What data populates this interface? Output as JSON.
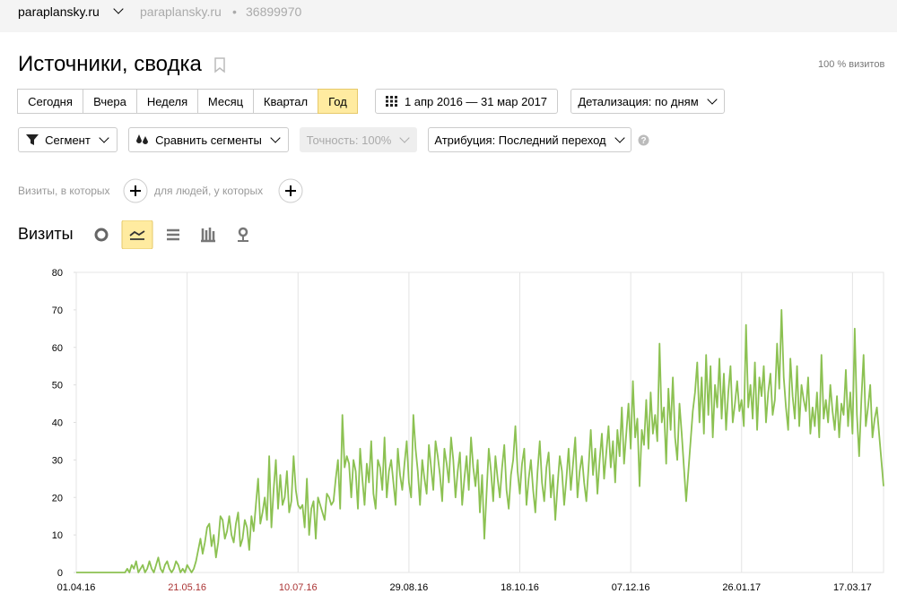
{
  "header": {
    "site": "paraplansky.ru",
    "site_secondary": "paraplansky.ru",
    "counter_id": "36899970"
  },
  "page": {
    "title": "Источники, сводка",
    "visits_share": "100 % визитов"
  },
  "period_buttons": [
    "Сегодня",
    "Вчера",
    "Неделя",
    "Месяц",
    "Квартал",
    "Год"
  ],
  "selected_period": 5,
  "date_range": "1 апр 2016 — 31 мар 2017",
  "detail": "Детализация: по дням",
  "filters": [
    "Сегмент",
    "Сравнить сегменты",
    "Точность: 100%",
    "Атрибуция: Последний переход"
  ],
  "segment_builder": {
    "visits_label": "Визиты, в которых",
    "people_label": "для людей, у которых"
  },
  "chart_data": {
    "type": "line",
    "title": "Визиты",
    "color": "#8cc152",
    "grid": true,
    "xlim": [
      0,
      364
    ],
    "ylim": [
      0,
      80
    ],
    "yticks": [
      0,
      10,
      20,
      30,
      40,
      50,
      60,
      70,
      80
    ],
    "xticks": [
      {
        "value": 0,
        "label": "01.04.16"
      },
      {
        "value": 50,
        "label": "21.05.16",
        "color": "#a33"
      },
      {
        "value": 100,
        "label": "10.07.16",
        "color": "#a33"
      },
      {
        "value": 150,
        "label": "29.08.16"
      },
      {
        "value": 200,
        "label": "18.10.16"
      },
      {
        "value": 250,
        "label": "07.12.16"
      },
      {
        "value": 300,
        "label": "26.01.17"
      },
      {
        "value": 350,
        "label": "17.03.17"
      }
    ],
    "values": [
      0,
      0,
      0,
      0,
      0,
      0,
      0,
      0,
      0,
      0,
      0,
      0,
      0,
      0,
      0,
      0,
      0,
      0,
      0,
      0,
      0,
      0,
      0,
      1,
      0,
      2,
      1,
      3,
      0,
      1,
      2,
      0,
      1,
      3,
      1,
      0,
      2,
      4,
      1,
      0,
      2,
      3,
      1,
      0,
      1,
      3,
      2,
      0,
      1,
      0,
      2,
      1,
      0,
      1,
      3,
      6,
      9,
      5,
      8,
      12,
      13,
      7,
      10,
      4,
      8,
      15,
      14,
      9,
      11,
      15,
      10,
      8,
      13,
      16,
      7,
      9,
      14,
      12,
      6,
      15,
      11,
      18,
      25,
      13,
      16,
      20,
      14,
      31,
      12,
      22,
      30,
      17,
      26,
      18,
      20,
      27,
      16,
      19,
      31,
      22,
      18,
      17,
      18,
      12,
      25,
      10,
      17,
      19,
      9,
      20,
      18,
      16,
      14,
      21,
      20,
      18,
      19,
      25,
      30,
      17,
      42,
      28,
      31,
      29,
      20,
      30,
      27,
      17,
      33,
      25,
      18,
      29,
      24,
      35,
      21,
      17,
      30,
      28,
      22,
      36,
      20,
      27,
      30,
      24,
      18,
      33,
      26,
      22,
      29,
      35,
      24,
      20,
      42,
      33,
      27,
      18,
      30,
      25,
      21,
      34,
      28,
      22,
      35,
      31,
      26,
      19,
      33,
      29,
      24,
      36,
      30,
      20,
      27,
      32,
      18,
      25,
      31,
      22,
      36,
      28,
      23,
      30,
      16,
      26,
      9,
      21,
      33,
      27,
      19,
      31,
      25,
      20,
      28,
      34,
      22,
      17,
      26,
      30,
      39,
      27,
      21,
      29,
      33,
      18,
      25,
      30,
      22,
      16,
      27,
      35,
      24,
      19,
      28,
      32,
      20,
      26,
      14,
      23,
      31,
      27,
      18,
      25,
      33,
      22,
      29,
      36,
      20,
      27,
      31,
      24,
      19,
      28,
      38,
      26,
      33,
      21,
      30,
      37,
      25,
      32,
      39,
      28,
      35,
      24,
      38,
      31,
      44,
      29,
      37,
      45,
      33,
      51,
      36,
      41,
      23,
      38,
      34,
      46,
      33,
      48,
      37,
      42,
      35,
      61,
      40,
      44,
      29,
      49,
      38,
      52,
      36,
      30,
      45,
      37,
      28,
      19,
      27,
      35,
      43,
      48,
      56,
      40,
      52,
      37,
      58,
      42,
      55,
      36,
      50,
      44,
      57,
      41,
      53,
      38,
      48,
      55,
      40,
      45,
      51,
      43,
      46,
      39,
      66,
      44,
      50,
      41,
      56,
      38,
      52,
      47,
      55,
      40,
      48,
      53,
      42,
      46,
      61,
      49,
      70,
      52,
      44,
      38,
      57,
      47,
      41,
      55,
      39,
      50,
      46,
      43,
      52,
      37,
      44,
      39,
      48,
      36,
      58,
      41,
      46,
      40,
      50,
      43,
      38,
      47,
      36,
      45,
      42,
      54,
      39,
      48,
      37,
      65,
      42,
      31,
      46,
      58,
      39,
      44,
      50,
      36,
      41,
      44,
      37,
      30,
      23
    ]
  }
}
